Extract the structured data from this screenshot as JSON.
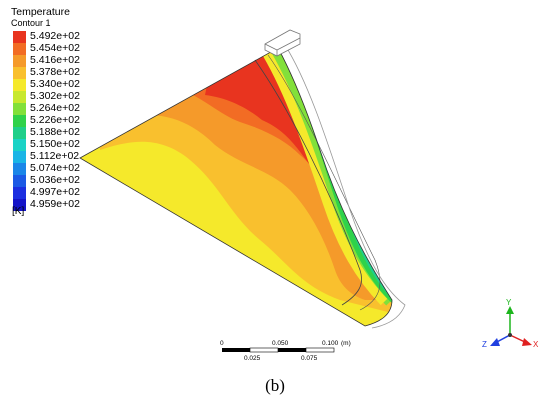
{
  "legend": {
    "title": "Temperature",
    "subtitle": "Contour 1",
    "unit": "[K]",
    "levels": [
      {
        "label": "5.492e+02",
        "color": "#e8341f"
      },
      {
        "label": "5.454e+02",
        "color": "#f26c24"
      },
      {
        "label": "5.416e+02",
        "color": "#f59a2a"
      },
      {
        "label": "5.378e+02",
        "color": "#f9c02e"
      },
      {
        "label": "5.340e+02",
        "color": "#f5e92b"
      },
      {
        "label": "5.302e+02",
        "color": "#c8e82e"
      },
      {
        "label": "5.264e+02",
        "color": "#82e03a"
      },
      {
        "label": "5.226e+02",
        "color": "#2fd24a"
      },
      {
        "label": "5.188e+02",
        "color": "#1fcf8a"
      },
      {
        "label": "5.150e+02",
        "color": "#1ad3c6"
      },
      {
        "label": "5.112e+02",
        "color": "#1ab5e6"
      },
      {
        "label": "5.074e+02",
        "color": "#1b86e8"
      },
      {
        "label": "5.036e+02",
        "color": "#1c5ae5"
      },
      {
        "label": "4.997e+02",
        "color": "#1c2fe0"
      },
      {
        "label": "4.959e+02",
        "color": "#1414c8"
      }
    ]
  },
  "scale_bar": {
    "top_labels": [
      "0",
      "0.050",
      "0.100",
      "(m)"
    ],
    "bottom_labels": [
      "0.025",
      "0.075"
    ]
  },
  "triad": {
    "x": "X",
    "y": "Y",
    "z": "Z"
  },
  "caption": "(b)"
}
